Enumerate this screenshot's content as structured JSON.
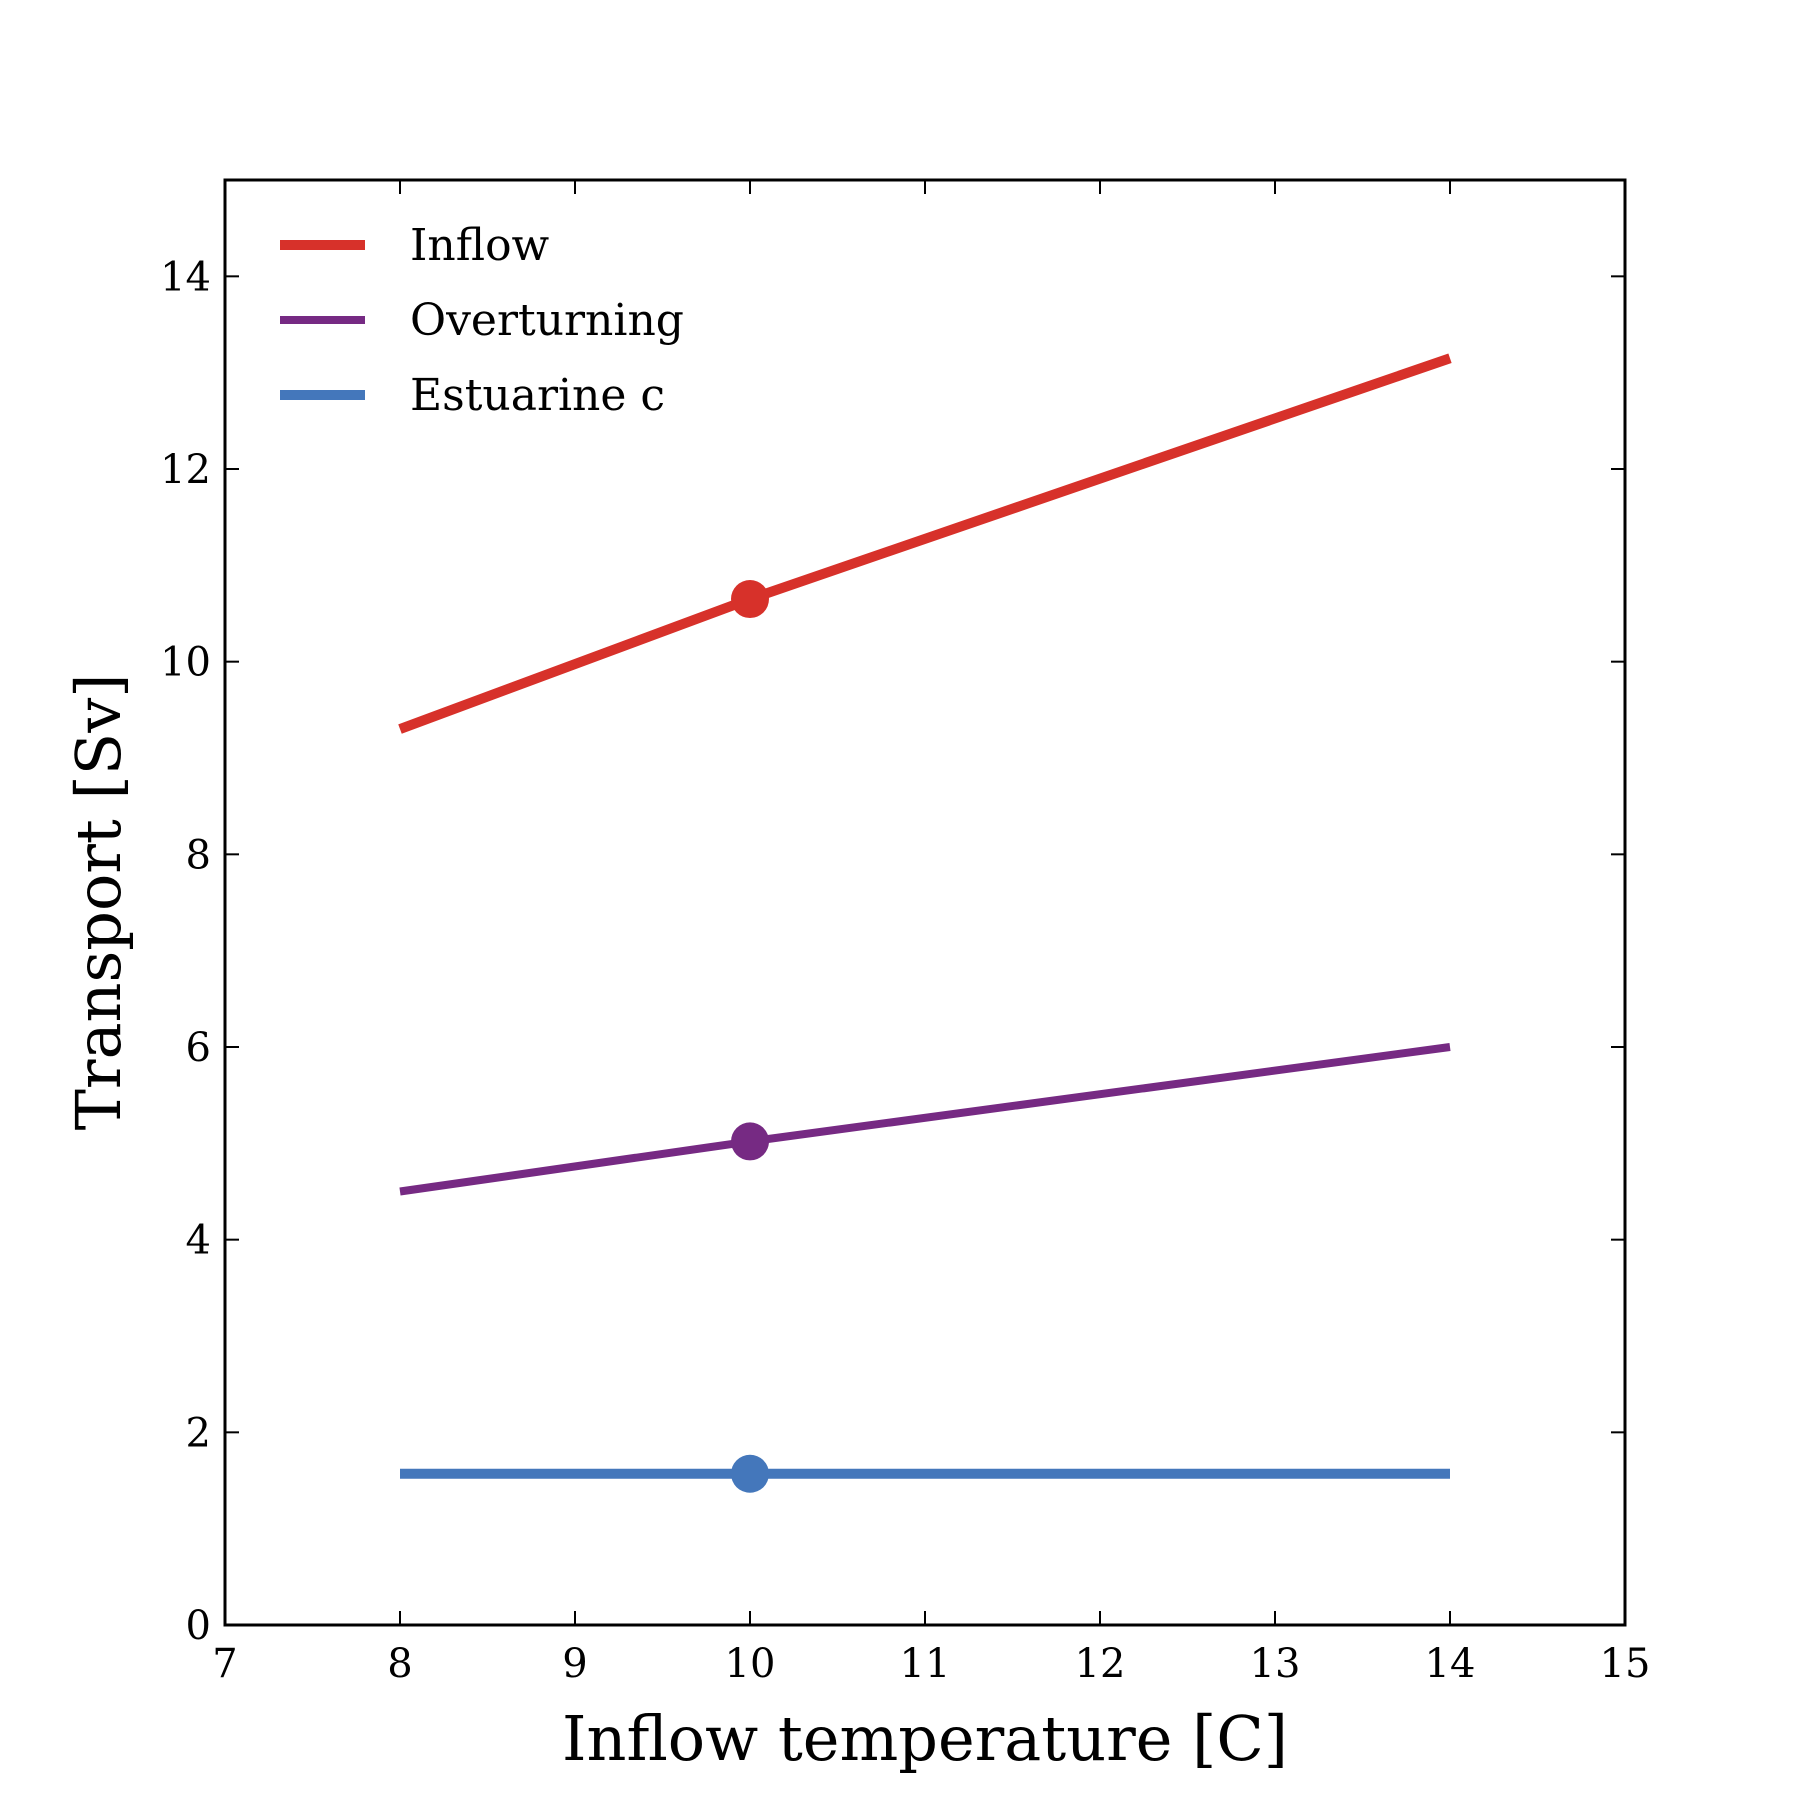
{
  "chart_data": {
    "type": "line",
    "xlabel": "Inflow temperature [C]",
    "ylabel": "Transport [Sv]",
    "xlim": [
      7,
      15
    ],
    "ylim": [
      0,
      15
    ],
    "xticks": [
      7,
      8,
      9,
      10,
      11,
      12,
      13,
      14,
      15
    ],
    "yticks": [
      0,
      2,
      4,
      6,
      8,
      10,
      12,
      14
    ],
    "grid": false,
    "legend_position": "top-left",
    "series": [
      {
        "name": "Inflow",
        "color": "#d7312a",
        "x": [
          8,
          10,
          14
        ],
        "y": [
          9.3,
          10.65,
          13.15
        ],
        "marker": {
          "x": 10,
          "y": 10.65
        }
      },
      {
        "name": "Overturning",
        "color": "#762a83",
        "x": [
          8,
          10,
          14
        ],
        "y": [
          4.5,
          5.02,
          6.0
        ],
        "marker": {
          "x": 10,
          "y": 5.02
        }
      },
      {
        "name": "Estuarine c",
        "color": "#4477bb",
        "x": [
          8,
          10,
          14
        ],
        "y": [
          1.57,
          1.57,
          1.57
        ],
        "marker": {
          "x": 10,
          "y": 1.57
        }
      }
    ]
  }
}
